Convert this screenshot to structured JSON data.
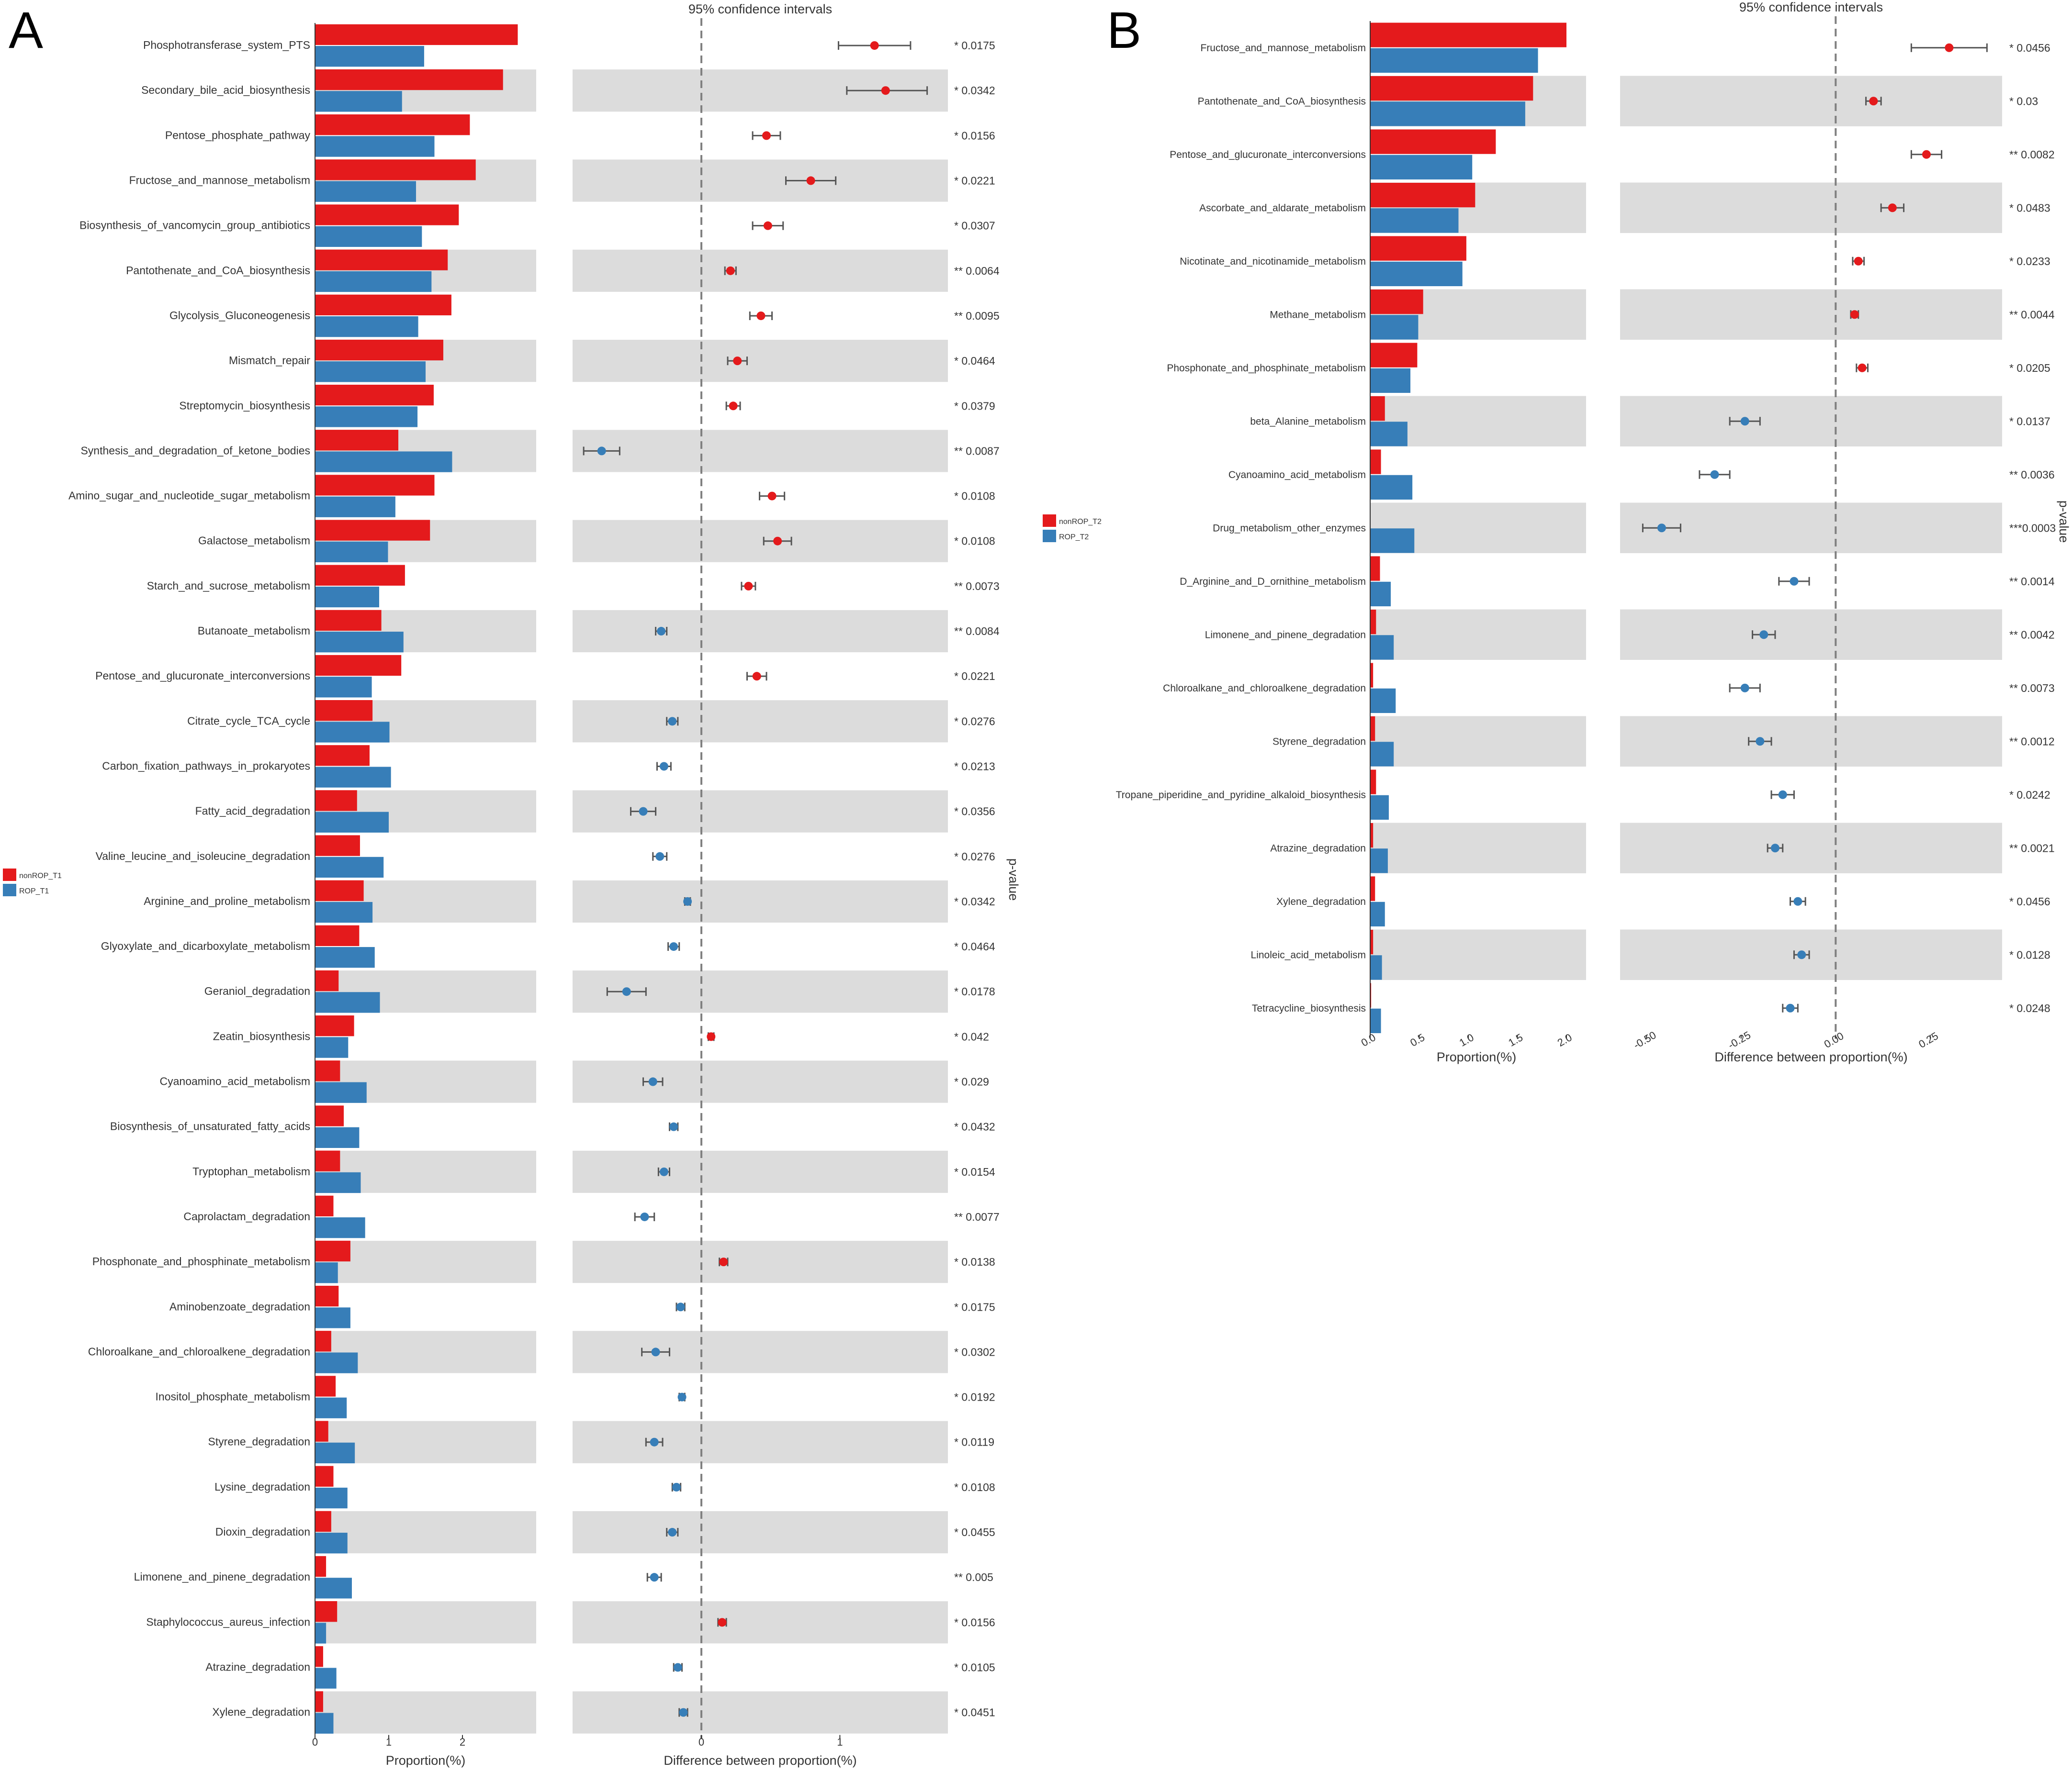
{
  "colors": {
    "group1": "#E41A1C",
    "group2": "#377EB8",
    "stripe": "#DCDCDC",
    "axis": "#333333",
    "text": "#333333",
    "dashed": "#808080",
    "errorbar": "#555555"
  },
  "chart_data": [
    {
      "panel_label": "A",
      "type": "bar",
      "title": "95% confidence intervals",
      "xlabel": "Proportion(%)",
      "diff_xlabel": "Difference between proportion(%)",
      "pvalue_label": "p-value",
      "xlim": [
        0,
        3.0
      ],
      "xticks": [
        0,
        1,
        2
      ],
      "diff_xlim": [
        -0.93,
        1.78
      ],
      "diff_xticks": [
        0,
        1
      ],
      "legend_position": "left",
      "series_names": [
        "nonROP_T1",
        "ROP_T1"
      ],
      "categories": [
        "Phosphotransferase_system_PTS",
        "Secondary_bile_acid_biosynthesis",
        "Pentose_phosphate_pathway",
        "Fructose_and_mannose_metabolism",
        "Biosynthesis_of_vancomycin_group_antibiotics",
        "Pantothenate_and_CoA_biosynthesis",
        "Glycolysis_Gluconeogenesis",
        "Mismatch_repair",
        "Streptomycin_biosynthesis",
        "Synthesis_and_degradation_of_ketone_bodies",
        "Amino_sugar_and_nucleotide_sugar_metabolism",
        "Galactose_metabolism",
        "Starch_and_sucrose_metabolism",
        "Butanoate_metabolism",
        "Pentose_and_glucuronate_interconversions",
        "Citrate_cycle_TCA_cycle",
        "Carbon_fixation_pathways_in_prokaryotes",
        "Fatty_acid_degradation",
        "Valine_leucine_and_isoleucine_degradation",
        "Arginine_and_proline_metabolism",
        "Glyoxylate_and_dicarboxylate_metabolism",
        "Geraniol_degradation",
        "Zeatin_biosynthesis",
        "Cyanoamino_acid_metabolism",
        "Biosynthesis_of_unsaturated_fatty_acids",
        "Tryptophan_metabolism",
        "Caprolactam_degradation",
        "Phosphonate_and_phosphinate_metabolism",
        "Aminobenzoate_degradation",
        "Chloroalkane_and_chloroalkene_degradation",
        "Inositol_phosphate_metabolism",
        "Styrene_degradation",
        "Lysine_degradation",
        "Dioxin_degradation",
        "Limonene_and_pinene_degradation",
        "Staphylococcus_aureus_infection",
        "Atrazine_degradation",
        "Xylene_degradation"
      ],
      "series": [
        {
          "name": "nonROP_T1",
          "values": [
            2.75,
            2.55,
            2.1,
            2.18,
            1.95,
            1.8,
            1.85,
            1.74,
            1.61,
            1.13,
            1.62,
            1.56,
            1.22,
            0.9,
            1.17,
            0.78,
            0.74,
            0.57,
            0.61,
            0.66,
            0.6,
            0.32,
            0.53,
            0.34,
            0.39,
            0.34,
            0.25,
            0.48,
            0.32,
            0.22,
            0.28,
            0.18,
            0.25,
            0.22,
            0.15,
            0.3,
            0.11,
            0.11
          ]
        },
        {
          "name": "ROP_T1",
          "values": [
            1.48,
            1.18,
            1.62,
            1.37,
            1.45,
            1.58,
            1.4,
            1.5,
            1.39,
            1.86,
            1.09,
            0.99,
            0.87,
            1.2,
            0.77,
            1.01,
            1.03,
            1.0,
            0.93,
            0.78,
            0.81,
            0.88,
            0.45,
            0.7,
            0.6,
            0.62,
            0.68,
            0.31,
            0.48,
            0.58,
            0.43,
            0.54,
            0.44,
            0.44,
            0.5,
            0.15,
            0.29,
            0.25
          ]
        }
      ],
      "difference": [
        1.25,
        1.33,
        0.47,
        0.79,
        0.48,
        0.21,
        0.43,
        0.26,
        0.23,
        -0.72,
        0.51,
        0.55,
        0.34,
        -0.29,
        0.4,
        -0.21,
        -0.27,
        -0.42,
        -0.3,
        -0.1,
        -0.2,
        -0.54,
        0.07,
        -0.35,
        -0.2,
        -0.27,
        -0.41,
        0.16,
        -0.15,
        -0.33,
        -0.14,
        -0.34,
        -0.18,
        -0.21,
        -0.34,
        0.15,
        -0.17,
        -0.13
      ],
      "ci_lower": [
        0.99,
        1.05,
        0.37,
        0.61,
        0.37,
        0.17,
        0.35,
        0.19,
        0.18,
        -0.85,
        0.42,
        0.45,
        0.29,
        -0.33,
        0.33,
        -0.25,
        -0.32,
        -0.51,
        -0.35,
        -0.12,
        -0.24,
        -0.68,
        0.05,
        -0.42,
        -0.23,
        -0.31,
        -0.48,
        0.13,
        -0.18,
        -0.43,
        -0.16,
        -0.4,
        -0.21,
        -0.25,
        -0.39,
        0.12,
        -0.2,
        -0.16
      ],
      "ci_upper": [
        1.51,
        1.63,
        0.57,
        0.97,
        0.59,
        0.25,
        0.51,
        0.33,
        0.28,
        -0.59,
        0.6,
        0.65,
        0.39,
        -0.25,
        0.47,
        -0.17,
        -0.22,
        -0.33,
        -0.25,
        -0.08,
        -0.16,
        -0.4,
        0.09,
        -0.28,
        -0.17,
        -0.23,
        -0.34,
        0.19,
        -0.12,
        -0.23,
        -0.12,
        -0.28,
        -0.15,
        -0.17,
        -0.29,
        0.18,
        -0.14,
        -0.1
      ],
      "pvalues": [
        "* 0.0175",
        "* 0.0342",
        "* 0.0156",
        "* 0.0221",
        "* 0.0307",
        "** 0.0064",
        "** 0.0095",
        "* 0.0464",
        "* 0.0379",
        "** 0.0087",
        "* 0.0108",
        "* 0.0108",
        "** 0.0073",
        "** 0.0084",
        "* 0.0221",
        "* 0.0276",
        "* 0.0213",
        "* 0.0356",
        "* 0.0276",
        "* 0.0342",
        "* 0.0464",
        "* 0.0178",
        "* 0.042",
        "* 0.029",
        "* 0.0432",
        "* 0.0154",
        "** 0.0077",
        "* 0.0138",
        "* 0.0175",
        "* 0.0302",
        "* 0.0192",
        "* 0.0119",
        "* 0.0108",
        "* 0.0455",
        "** 0.005",
        "* 0.0156",
        "* 0.0105",
        "* 0.0451"
      ]
    },
    {
      "panel_label": "B",
      "type": "bar",
      "title": "95% confidence intervals",
      "xlabel": "Proportion(%)",
      "diff_xlabel": "Difference between proportion(%)",
      "pvalue_label": "p-value",
      "xlim": [
        0,
        2.2
      ],
      "xticks": [
        "0.0",
        "0.5",
        "1.0",
        "1.5",
        "2.0"
      ],
      "diff_xlim": [
        -0.57,
        0.44
      ],
      "diff_xticks": [
        "-0.50",
        "-0.25",
        "0.00",
        "0.25"
      ],
      "legend_position": "left",
      "series_names": [
        "nonROP_T2",
        "ROP_T2"
      ],
      "categories": [
        "Fructose_and_mannose_metabolism",
        "Pantothenate_and_CoA_biosynthesis",
        "Pentose_and_glucuronate_interconversions",
        "Ascorbate_and_aldarate_metabolism",
        "Nicotinate_and_nicotinamide_metabolism",
        "Methane_metabolism",
        "Phosphonate_and_phosphinate_metabolism",
        "beta_Alanine_metabolism",
        "Cyanoamino_acid_metabolism",
        "Drug_metabolism_other_enzymes",
        "D_Arginine_and_D_ornithine_metabolism",
        "Limonene_and_pinene_degradation",
        "Chloroalkane_and_chloroalkene_degradation",
        "Styrene_degradation",
        "Tropane_piperidine_and_pyridine_alkaloid_biosynthesis",
        "Atrazine_degradation",
        "Xylene_degradation",
        "Linoleic_acid_metabolism",
        "Tetracycline_biosynthesis"
      ],
      "series": [
        {
          "name": "nonROP_T2",
          "values": [
            2.0,
            1.66,
            1.28,
            1.07,
            0.98,
            0.54,
            0.48,
            0.15,
            0.11,
            0.0,
            0.1,
            0.06,
            0.03,
            0.05,
            0.06,
            0.03,
            0.05,
            0.03,
            0.01
          ]
        },
        {
          "name": "ROP_T2",
          "values": [
            1.71,
            1.58,
            1.04,
            0.9,
            0.94,
            0.49,
            0.41,
            0.38,
            0.43,
            0.45,
            0.21,
            0.24,
            0.26,
            0.24,
            0.19,
            0.18,
            0.15,
            0.12,
            0.11
          ]
        }
      ],
      "difference": [
        0.3,
        0.1,
        0.24,
        0.15,
        0.06,
        0.05,
        0.07,
        -0.24,
        -0.32,
        -0.46,
        -0.11,
        -0.19,
        -0.24,
        -0.2,
        -0.14,
        -0.16,
        -0.1,
        -0.09,
        -0.12
      ],
      "ci_lower": [
        0.2,
        0.08,
        0.2,
        0.12,
        0.045,
        0.04,
        0.055,
        -0.28,
        -0.36,
        -0.51,
        -0.15,
        -0.22,
        -0.28,
        -0.23,
        -0.17,
        -0.18,
        -0.12,
        -0.11,
        -0.14
      ],
      "ci_upper": [
        0.4,
        0.12,
        0.28,
        0.18,
        0.075,
        0.06,
        0.085,
        -0.2,
        -0.28,
        -0.41,
        -0.07,
        -0.16,
        -0.2,
        -0.17,
        -0.11,
        -0.14,
        -0.08,
        -0.07,
        -0.1
      ],
      "pvalues": [
        "* 0.0456",
        "* 0.03",
        "** 0.0082",
        "* 0.0483",
        "* 0.0233",
        "** 0.0044",
        "* 0.0205",
        "* 0.0137",
        "** 0.0036",
        "***0.0003",
        "** 0.0014",
        "** 0.0042",
        "** 0.0073",
        "** 0.0012",
        "* 0.0242",
        "** 0.0021",
        "* 0.0456",
        "* 0.0128",
        "* 0.0248"
      ]
    }
  ]
}
